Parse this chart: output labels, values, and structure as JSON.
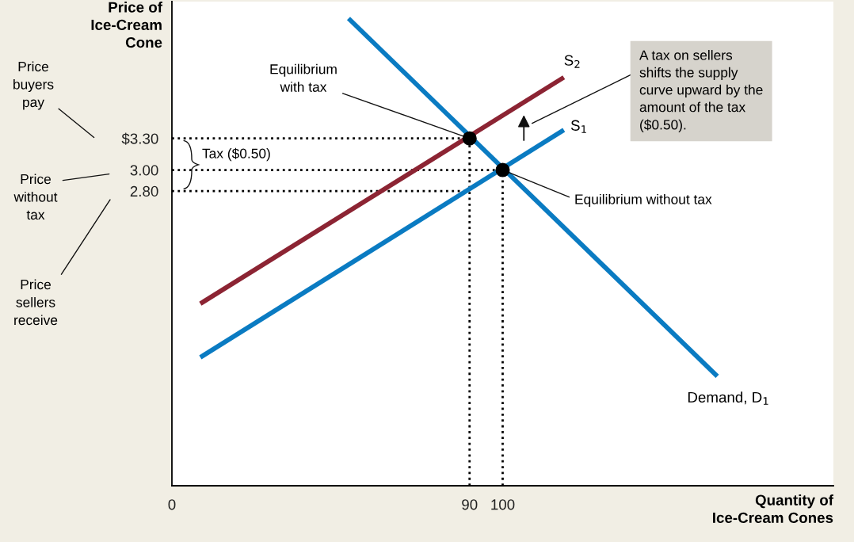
{
  "chart_data": {
    "type": "line",
    "ylabel": "Price of Ice-Cream Cone",
    "xlabel": "Quantity of Ice-Cream Cones",
    "xlim": [
      0,
      200
    ],
    "ylim": [
      0,
      4.6
    ],
    "xticks": [
      0,
      90,
      100
    ],
    "yticks": [
      {
        "value": 2.8,
        "label": "2.80"
      },
      {
        "value": 3.0,
        "label": "3.00"
      },
      {
        "value": 3.3,
        "label": "$3.30"
      }
    ],
    "series": [
      {
        "color": "#000000",
        "line_style": "dotted",
        "x": [
          0,
          90
        ],
        "values": [
          3.3,
          3.3
        ]
      },
      {
        "color": "#000000",
        "line_style": "dotted",
        "x": [
          0,
          100
        ],
        "values": [
          3.0,
          3.0
        ]
      },
      {
        "color": "#000000",
        "line_style": "dotted",
        "x": [
          0,
          90
        ],
        "values": [
          2.8,
          2.8
        ]
      },
      {
        "color": "#000000",
        "line_style": "dotted",
        "x": [
          90,
          90
        ],
        "values": [
          0,
          3.3
        ]
      },
      {
        "color": "#000000",
        "line_style": "dotted",
        "x": [
          100,
          100
        ],
        "values": [
          0,
          3.0
        ]
      },
      {
        "name": "S$_{1}$",
        "color": "#0a7bc2",
        "line_style": "solid",
        "x": [
          8.6,
          118.5
        ],
        "values": [
          1.22,
          3.38
        ]
      },
      {
        "name": "S$_{2}$",
        "color": "#8c2433",
        "line_style": "solid",
        "x": [
          8.6,
          118.5
        ],
        "values": [
          1.73,
          3.88
        ]
      },
      {
        "name": "Demand, D$_{1}$",
        "color": "#0a7bc2",
        "line_style": "solid",
        "x": [
          53.4,
          164.9
        ],
        "values": [
          4.44,
          1.04
        ]
      },
      {
        "type": "scatter",
        "color": "#000000",
        "marker": "circle",
        "x": [
          90,
          100
        ],
        "values": [
          3.3,
          3.0
        ]
      }
    ],
    "annotations": [
      "Price buyers pay",
      "Price without tax",
      "Price sellers receive",
      {
        "text": "Equilibrium with tax",
        "x": 90,
        "y": 3.3
      },
      {
        "text": "Equilibrium without tax",
        "x": 100,
        "y": 3.0
      },
      "Tax ($0.50)",
      "A tax on sellers shifts the supply curve upward by the amount of the tax ($0.50)."
    ]
  }
}
